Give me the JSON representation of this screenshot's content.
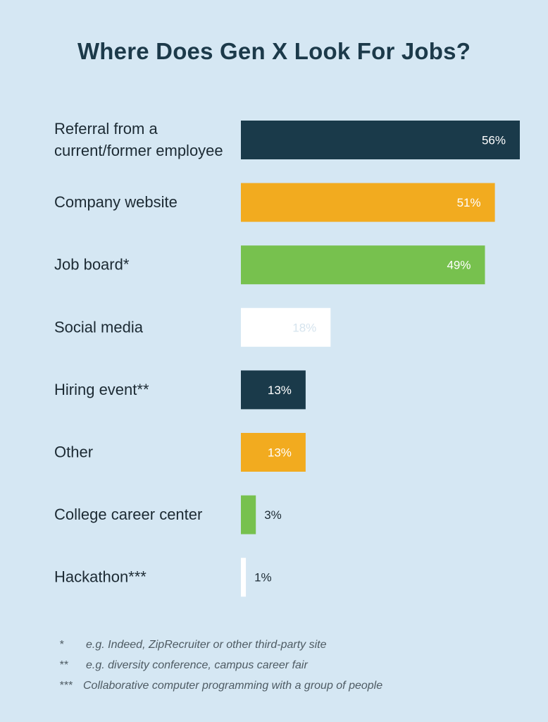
{
  "colors": {
    "background": "#d5e7f3",
    "navy": "#1a3a4a",
    "orange": "#f2ab1f",
    "green": "#77c14e",
    "white": "#ffffff",
    "label_text": "#1c2a33",
    "light_value_text": "#d6e4ee"
  },
  "chart_data": {
    "type": "bar",
    "orientation": "horizontal",
    "title": "Where Does Gen X Look For Jobs?",
    "categories": [
      "Referral from a current/former employee",
      "Company website",
      "Job board*",
      "Social media",
      "Hiring event**",
      "Other",
      "College career center",
      "Hackathon***"
    ],
    "values": [
      56,
      51,
      49,
      18,
      13,
      13,
      3,
      1
    ],
    "value_labels": [
      "56%",
      "51%",
      "49%",
      "18%",
      "13%",
      "13%",
      "3%",
      "1%"
    ],
    "bar_colors": [
      "#1a3a4a",
      "#f2ab1f",
      "#77c14e",
      "#ffffff",
      "#1a3a4a",
      "#f2ab1f",
      "#77c14e",
      "#ffffff"
    ],
    "xlim": [
      0,
      56
    ],
    "grid": false,
    "legend": "none"
  },
  "footnotes": [
    {
      "mark": "*",
      "text": "e.g. Indeed, ZipRecruiter or other third-party site"
    },
    {
      "mark": "**",
      "text": "e.g. diversity conference, campus career fair"
    },
    {
      "mark": "***",
      "text": "Collaborative computer programming with a group of people"
    }
  ]
}
